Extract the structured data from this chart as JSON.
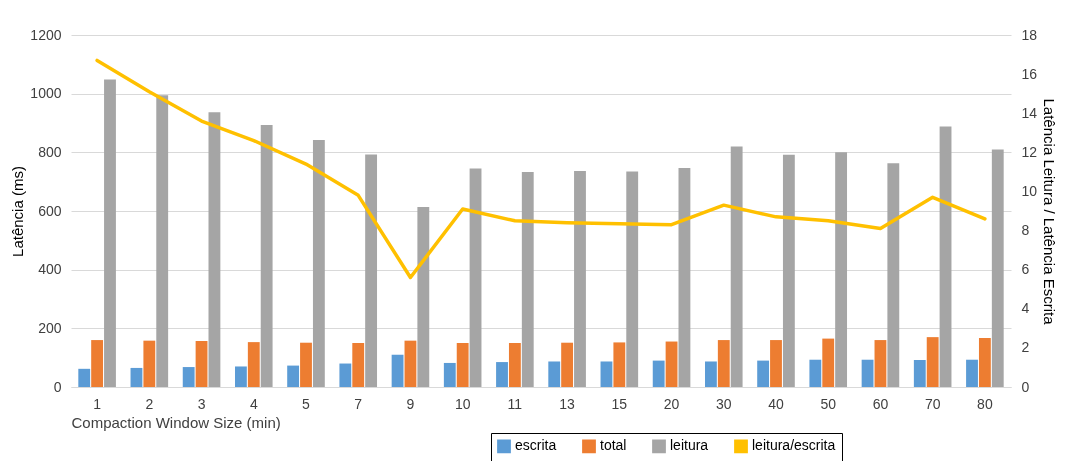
{
  "chart_data": {
    "type": "bar",
    "xlabel": "Compaction Window Size (min)",
    "ylabel": "Latência (ms)",
    "y2label": "Latência Leitura / Latência Escrita",
    "categories": [
      "1",
      "2",
      "3",
      "4",
      "5",
      "7",
      "9",
      "10",
      "11",
      "13",
      "15",
      "20",
      "30",
      "40",
      "50",
      "60",
      "70",
      "80"
    ],
    "series": [
      {
        "name": "escrita",
        "color": "#5b9bd5",
        "values": [
          62,
          65,
          68,
          70,
          73,
          80,
          110,
          82,
          85,
          87,
          87,
          90,
          87,
          90,
          93,
          93,
          92,
          93
        ]
      },
      {
        "name": "total",
        "color": "#ed7d31",
        "values": [
          160,
          158,
          157,
          153,
          151,
          150,
          158,
          150,
          150,
          151,
          152,
          155,
          160,
          160,
          165,
          160,
          170,
          167
        ]
      },
      {
        "name": "leitura",
        "color": "#a5a5a5",
        "values": [
          1048,
          995,
          937,
          893,
          842,
          793,
          614,
          745,
          733,
          736,
          735,
          747,
          820,
          792,
          800,
          763,
          888,
          810
        ]
      },
      {
        "name": "leitura/escrita",
        "type": "line",
        "axis": "y2",
        "color": "#ffc000",
        "values": [
          16.7,
          15.1,
          13.6,
          12.6,
          11.4,
          9.8,
          5.6,
          9.1,
          8.5,
          8.4,
          8.35,
          8.3,
          9.3,
          8.7,
          8.5,
          8.1,
          9.7,
          8.6
        ]
      }
    ],
    "ylim": [
      0,
      1200
    ],
    "yticks": [
      0,
      200,
      400,
      600,
      800,
      1000,
      1200
    ],
    "y2lim": [
      0,
      18
    ],
    "y2ticks": [
      0,
      2,
      4,
      6,
      8,
      10,
      12,
      14,
      16,
      18
    ],
    "grid": "y",
    "legend": "bottom right"
  }
}
